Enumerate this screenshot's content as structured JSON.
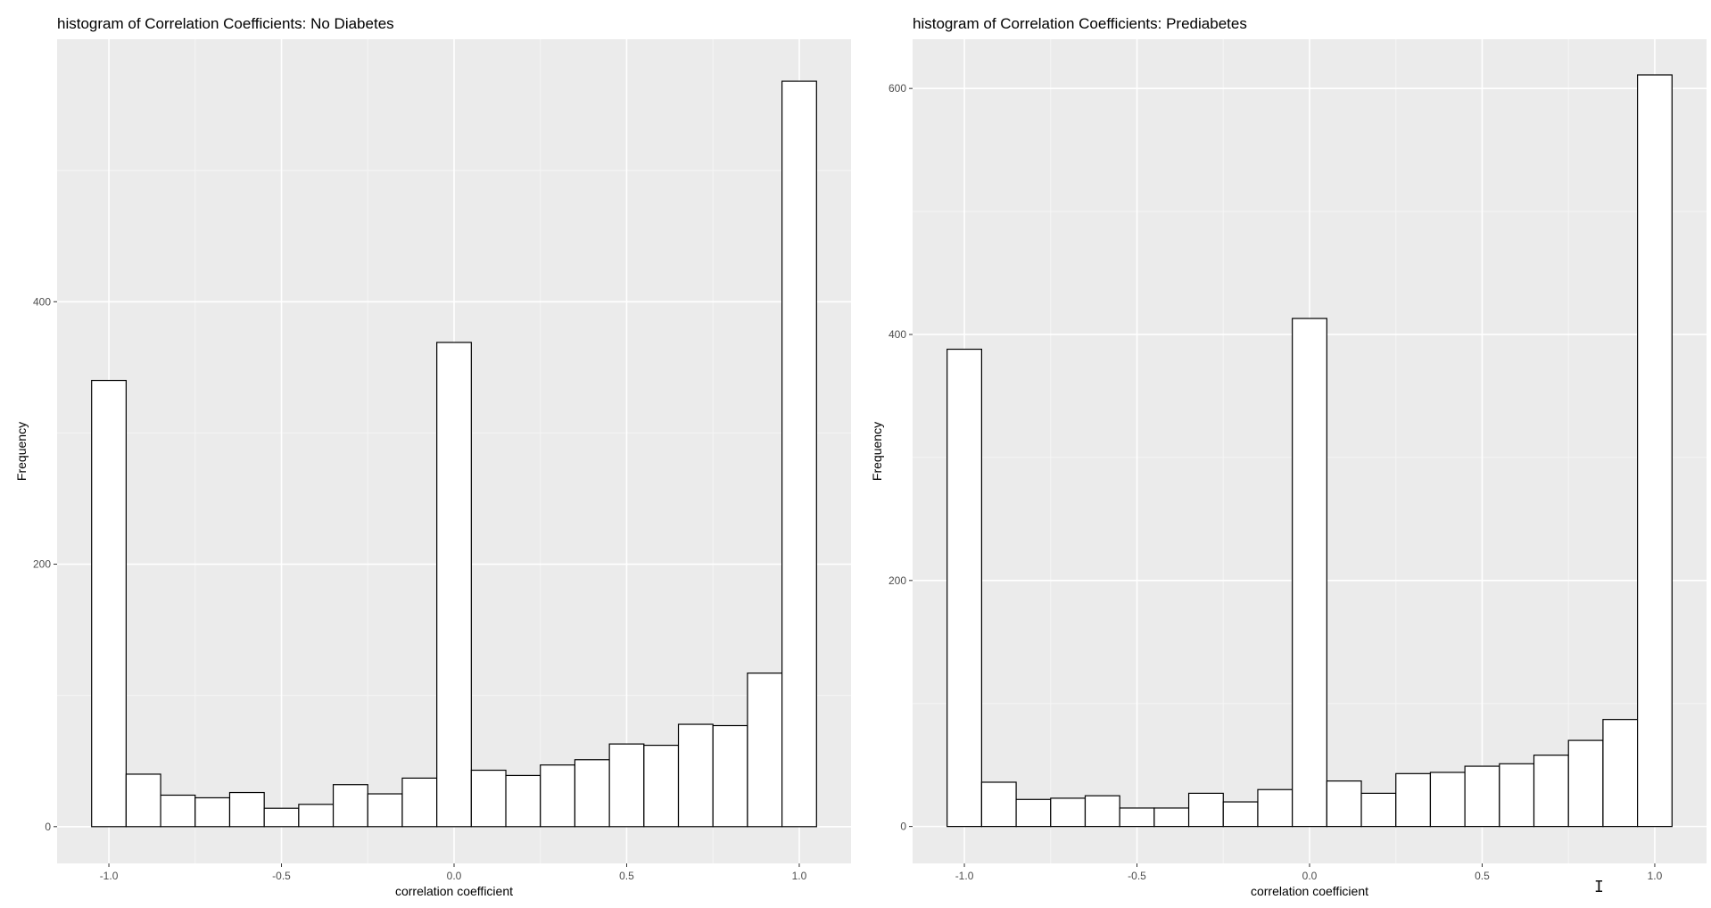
{
  "chart_data": [
    {
      "type": "bar",
      "title": "histogram of Correlation Coefficients: No Diabetes",
      "xlabel": "correlation coefficient",
      "ylabel": "Frequency",
      "xlim": [
        -1.15,
        1.15
      ],
      "ylim": [
        -28,
        600
      ],
      "x_ticks": [
        "-1.0",
        "-0.5",
        "0.0",
        "0.5",
        "1.0"
      ],
      "x_tick_values": [
        -1.0,
        -0.5,
        0.0,
        0.5,
        1.0
      ],
      "y_ticks": [
        "0",
        "200",
        "400"
      ],
      "y_tick_values": [
        0,
        200,
        400
      ],
      "bin_width": 0.1,
      "bin_centers": [
        -1.0,
        -0.9,
        -0.8,
        -0.7,
        -0.6,
        -0.5,
        -0.4,
        -0.3,
        -0.2,
        -0.1,
        0.0,
        0.1,
        0.2,
        0.3,
        0.4,
        0.5,
        0.6,
        0.7,
        0.8,
        0.9,
        1.0
      ],
      "values": [
        340,
        40,
        24,
        22,
        26,
        14,
        17,
        32,
        25,
        37,
        369,
        43,
        39,
        47,
        51,
        63,
        62,
        78,
        77,
        117,
        568
      ],
      "grid": true,
      "fill_color": "#ffffff",
      "edge_color": "#000000",
      "panel_color": "#ebebeb"
    },
    {
      "type": "bar",
      "title": "histogram of Correlation Coefficients: Prediabetes",
      "xlabel": "correlation coefficient",
      "ylabel": "Frequency",
      "xlim": [
        -1.15,
        1.15
      ],
      "ylim": [
        -30,
        640
      ],
      "x_ticks": [
        "-1.0",
        "-0.5",
        "0.0",
        "0.5",
        "1.0"
      ],
      "x_tick_values": [
        -1.0,
        -0.5,
        0.0,
        0.5,
        1.0
      ],
      "y_ticks": [
        "0",
        "200",
        "400",
        "600"
      ],
      "y_tick_values": [
        0,
        200,
        400,
        600
      ],
      "bin_width": 0.1,
      "bin_centers": [
        -1.0,
        -0.9,
        -0.8,
        -0.7,
        -0.6,
        -0.5,
        -0.4,
        -0.3,
        -0.2,
        -0.1,
        0.0,
        0.1,
        0.2,
        0.3,
        0.4,
        0.5,
        0.6,
        0.7,
        0.8,
        0.9,
        1.0
      ],
      "values": [
        388,
        36,
        22,
        23,
        25,
        15,
        15,
        27,
        20,
        30,
        413,
        37,
        27,
        43,
        44,
        49,
        51,
        58,
        70,
        87,
        611
      ],
      "grid": true,
      "fill_color": "#ffffff",
      "edge_color": "#000000",
      "panel_color": "#ebebeb"
    }
  ],
  "cursor": {
    "icon": "text-cursor-icon",
    "glyph": "I"
  }
}
